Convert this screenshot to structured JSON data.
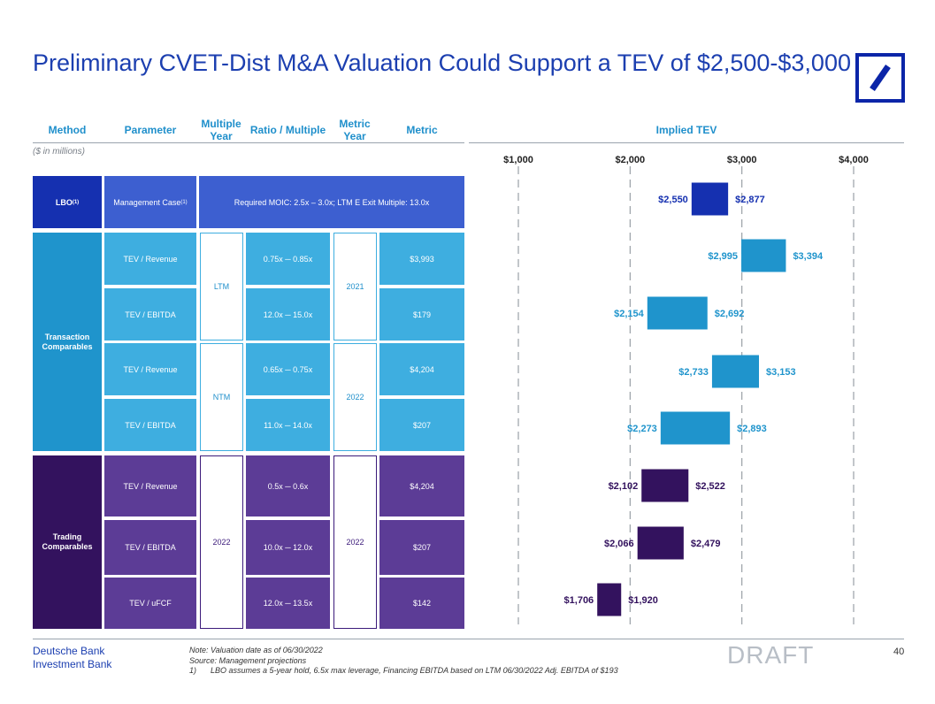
{
  "title": "Preliminary CVET-Dist M&A Valuation Could Support a TEV of $2,500-$3,000",
  "headers": {
    "method": "Method",
    "parameter": "Parameter",
    "multiple_year": "Multiple Year",
    "ratio_multiple": "Ratio / Multiple",
    "metric_year": "Metric Year",
    "metric": "Metric",
    "implied_tev": "Implied TEV"
  },
  "units_note": "($ in millions)",
  "lbo": {
    "method": "LBO",
    "method_sup": "(1)",
    "parameter": "Management Case",
    "parameter_sup": "(1)",
    "description": "Required MOIC: 2.5x – 3.0x; LTM E Exit Multiple: 13.0x"
  },
  "transaction": {
    "method": "Transaction Comparables",
    "ltm_label": "LTM",
    "ntm_label": "NTM",
    "year_2021": "2021",
    "year_2022": "2022",
    "rows": [
      {
        "parameter": "TEV / Revenue",
        "ratio": "0.75x ─ 0.85x",
        "metric": "$3,993"
      },
      {
        "parameter": "TEV / EBITDA",
        "ratio": "12.0x ─ 15.0x",
        "metric": "$179"
      },
      {
        "parameter": "TEV / Revenue",
        "ratio": "0.65x ─ 0.75x",
        "metric": "$4,204"
      },
      {
        "parameter": "TEV / EBITDA",
        "ratio": "11.0x ─ 14.0x",
        "metric": "$207"
      }
    ]
  },
  "trading": {
    "method": "Trading Comparables",
    "multiple_year": "2022",
    "metric_year": "2022",
    "rows": [
      {
        "parameter": "TEV / Revenue",
        "ratio": "0.5x ─ 0.6x",
        "metric": "$4,204"
      },
      {
        "parameter": "TEV / EBITDA",
        "ratio": "10.0x ─ 12.0x",
        "metric": "$207"
      },
      {
        "parameter": "TEV / uFCF",
        "ratio": "12.0x ─ 13.5x",
        "metric": "$142"
      }
    ]
  },
  "chart_data": {
    "type": "bar",
    "subtype": "floating-range",
    "title": "Implied TEV",
    "axis_ticks": [
      1000,
      2000,
      3000,
      4000
    ],
    "axis_tick_labels": [
      "$1,000",
      "$2,000",
      "$3,000",
      "$4,000"
    ],
    "xlim": [
      1000,
      4000
    ],
    "series": [
      {
        "name": "LBO",
        "low": 2550,
        "high": 2877,
        "low_label": "$2,550",
        "high_label": "$2,877",
        "color": "#1530b0"
      },
      {
        "name": "Transaction LTM TEV / Revenue",
        "low": 2995,
        "high": 3394,
        "low_label": "$2,995",
        "high_label": "$3,394",
        "color": "#1f94cc"
      },
      {
        "name": "Transaction LTM TEV / EBITDA",
        "low": 2154,
        "high": 2692,
        "low_label": "$2,154",
        "high_label": "$2,692",
        "color": "#1f94cc"
      },
      {
        "name": "Transaction NTM TEV / Revenue",
        "low": 2733,
        "high": 3153,
        "low_label": "$2,733",
        "high_label": "$3,153",
        "color": "#1f94cc"
      },
      {
        "name": "Transaction NTM TEV / EBITDA",
        "low": 2273,
        "high": 2893,
        "low_label": "$2,273",
        "high_label": "$2,893",
        "color": "#1f94cc"
      },
      {
        "name": "Trading TEV / Revenue",
        "low": 2102,
        "high": 2522,
        "low_label": "$2,102",
        "high_label": "$2,522",
        "color": "#33125e"
      },
      {
        "name": "Trading TEV / EBITDA",
        "low": 2066,
        "high": 2479,
        "low_label": "$2,066",
        "high_label": "$2,479",
        "color": "#33125e"
      },
      {
        "name": "Trading TEV / uFCF",
        "low": 1706,
        "high": 1920,
        "low_label": "$1,706",
        "high_label": "$1,920",
        "color": "#33125e"
      }
    ]
  },
  "footer": {
    "brand_line1": "Deutsche Bank",
    "brand_line2": "Investment Bank",
    "note1": "Note: Valuation date as of 06/30/2022",
    "note2": "Source: Management projections",
    "note3_num": "1)",
    "note3": "LBO assumes a 5-year hold, 6.5x max leverage, Financing EBITDA based on LTM 06/30/2022 Adj. EBITDA of $193",
    "draft": "DRAFT",
    "page_number": "40"
  },
  "colors": {
    "brand_blue": "#1c3fb0",
    "lbo": "#1530b0",
    "transaction": "#1f94cc",
    "trading": "#33125e"
  }
}
